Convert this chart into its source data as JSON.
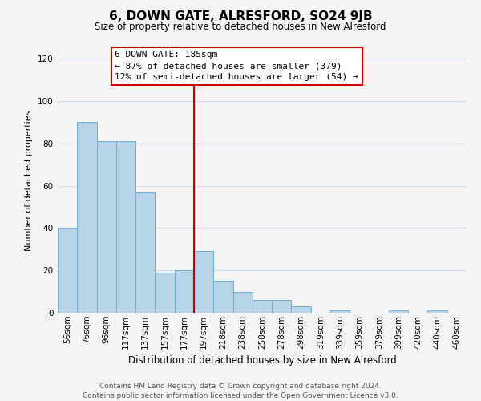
{
  "title": "6, DOWN GATE, ALRESFORD, SO24 9JB",
  "subtitle": "Size of property relative to detached houses in New Alresford",
  "xlabel": "Distribution of detached houses by size in New Alresford",
  "ylabel": "Number of detached properties",
  "bar_labels": [
    "56sqm",
    "76sqm",
    "96sqm",
    "117sqm",
    "137sqm",
    "157sqm",
    "177sqm",
    "197sqm",
    "218sqm",
    "238sqm",
    "258sqm",
    "278sqm",
    "298sqm",
    "319sqm",
    "339sqm",
    "359sqm",
    "379sqm",
    "399sqm",
    "420sqm",
    "440sqm",
    "460sqm"
  ],
  "bar_values": [
    40,
    90,
    81,
    81,
    57,
    19,
    20,
    29,
    15,
    10,
    6,
    6,
    3,
    0,
    1,
    0,
    0,
    1,
    0,
    1,
    0
  ],
  "bar_color": "#b8d4e8",
  "bar_edge_color": "#6aaed6",
  "ylim": [
    0,
    125
  ],
  "yticks": [
    0,
    20,
    40,
    60,
    80,
    100,
    120
  ],
  "vline_x": 7.0,
  "vline_color": "#cc0000",
  "annotation_title": "6 DOWN GATE: 185sqm",
  "annotation_line1": "← 87% of detached houses are smaller (379)",
  "annotation_line2": "12% of semi-detached houses are larger (54) →",
  "annotation_box_color": "#ffffff",
  "annotation_box_edge": "#cc0000",
  "footer_line1": "Contains HM Land Registry data © Crown copyright and database right 2024.",
  "footer_line2": "Contains public sector information licensed under the Open Government Licence v3.0.",
  "bg_color": "#f5f5f5",
  "grid_color": "#d0dde8",
  "title_fontsize": 11,
  "subtitle_fontsize": 8.5,
  "xlabel_fontsize": 8.5,
  "ylabel_fontsize": 8,
  "tick_fontsize": 7.5,
  "annotation_fontsize": 8,
  "footer_fontsize": 6.5
}
